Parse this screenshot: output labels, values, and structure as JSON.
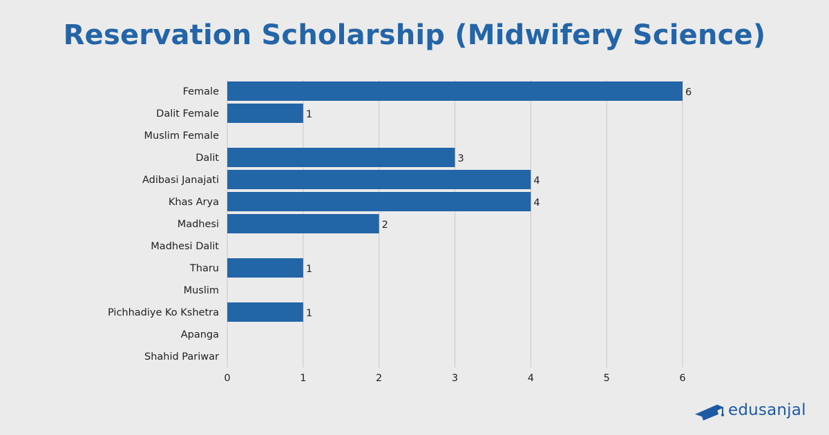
{
  "page": {
    "title": "Reservation Scholarship (Midwifery Science)",
    "brand": "edusanjal"
  },
  "colors": {
    "background": "#ebebeb",
    "title": "#2465a8",
    "bar": "#2366a8",
    "grid": "#c8c8c8",
    "brand": "#1e5aa3"
  },
  "chart_data": {
    "type": "bar",
    "orientation": "horizontal",
    "title": "Reservation Scholarship (Midwifery Science)",
    "xlabel": "",
    "ylabel": "",
    "categories": [
      "Female",
      "Dalit Female",
      "Muslim Female",
      "Dalit",
      "Adibasi Janajati",
      "Khas Arya",
      "Madhesi",
      "Madhesi Dalit",
      "Tharu",
      "Muslim",
      "Pichhadiye Ko Kshetra",
      "Apanga",
      "Shahid Pariwar"
    ],
    "values": [
      6,
      1,
      0,
      3,
      4,
      4,
      2,
      0,
      1,
      0,
      1,
      0,
      0
    ],
    "xlim": [
      0,
      6
    ],
    "xticks": [
      0,
      1,
      2,
      3,
      4,
      5,
      6
    ],
    "grid": "vertical",
    "legend": "none",
    "data_labels": "shown for non-zero values"
  }
}
